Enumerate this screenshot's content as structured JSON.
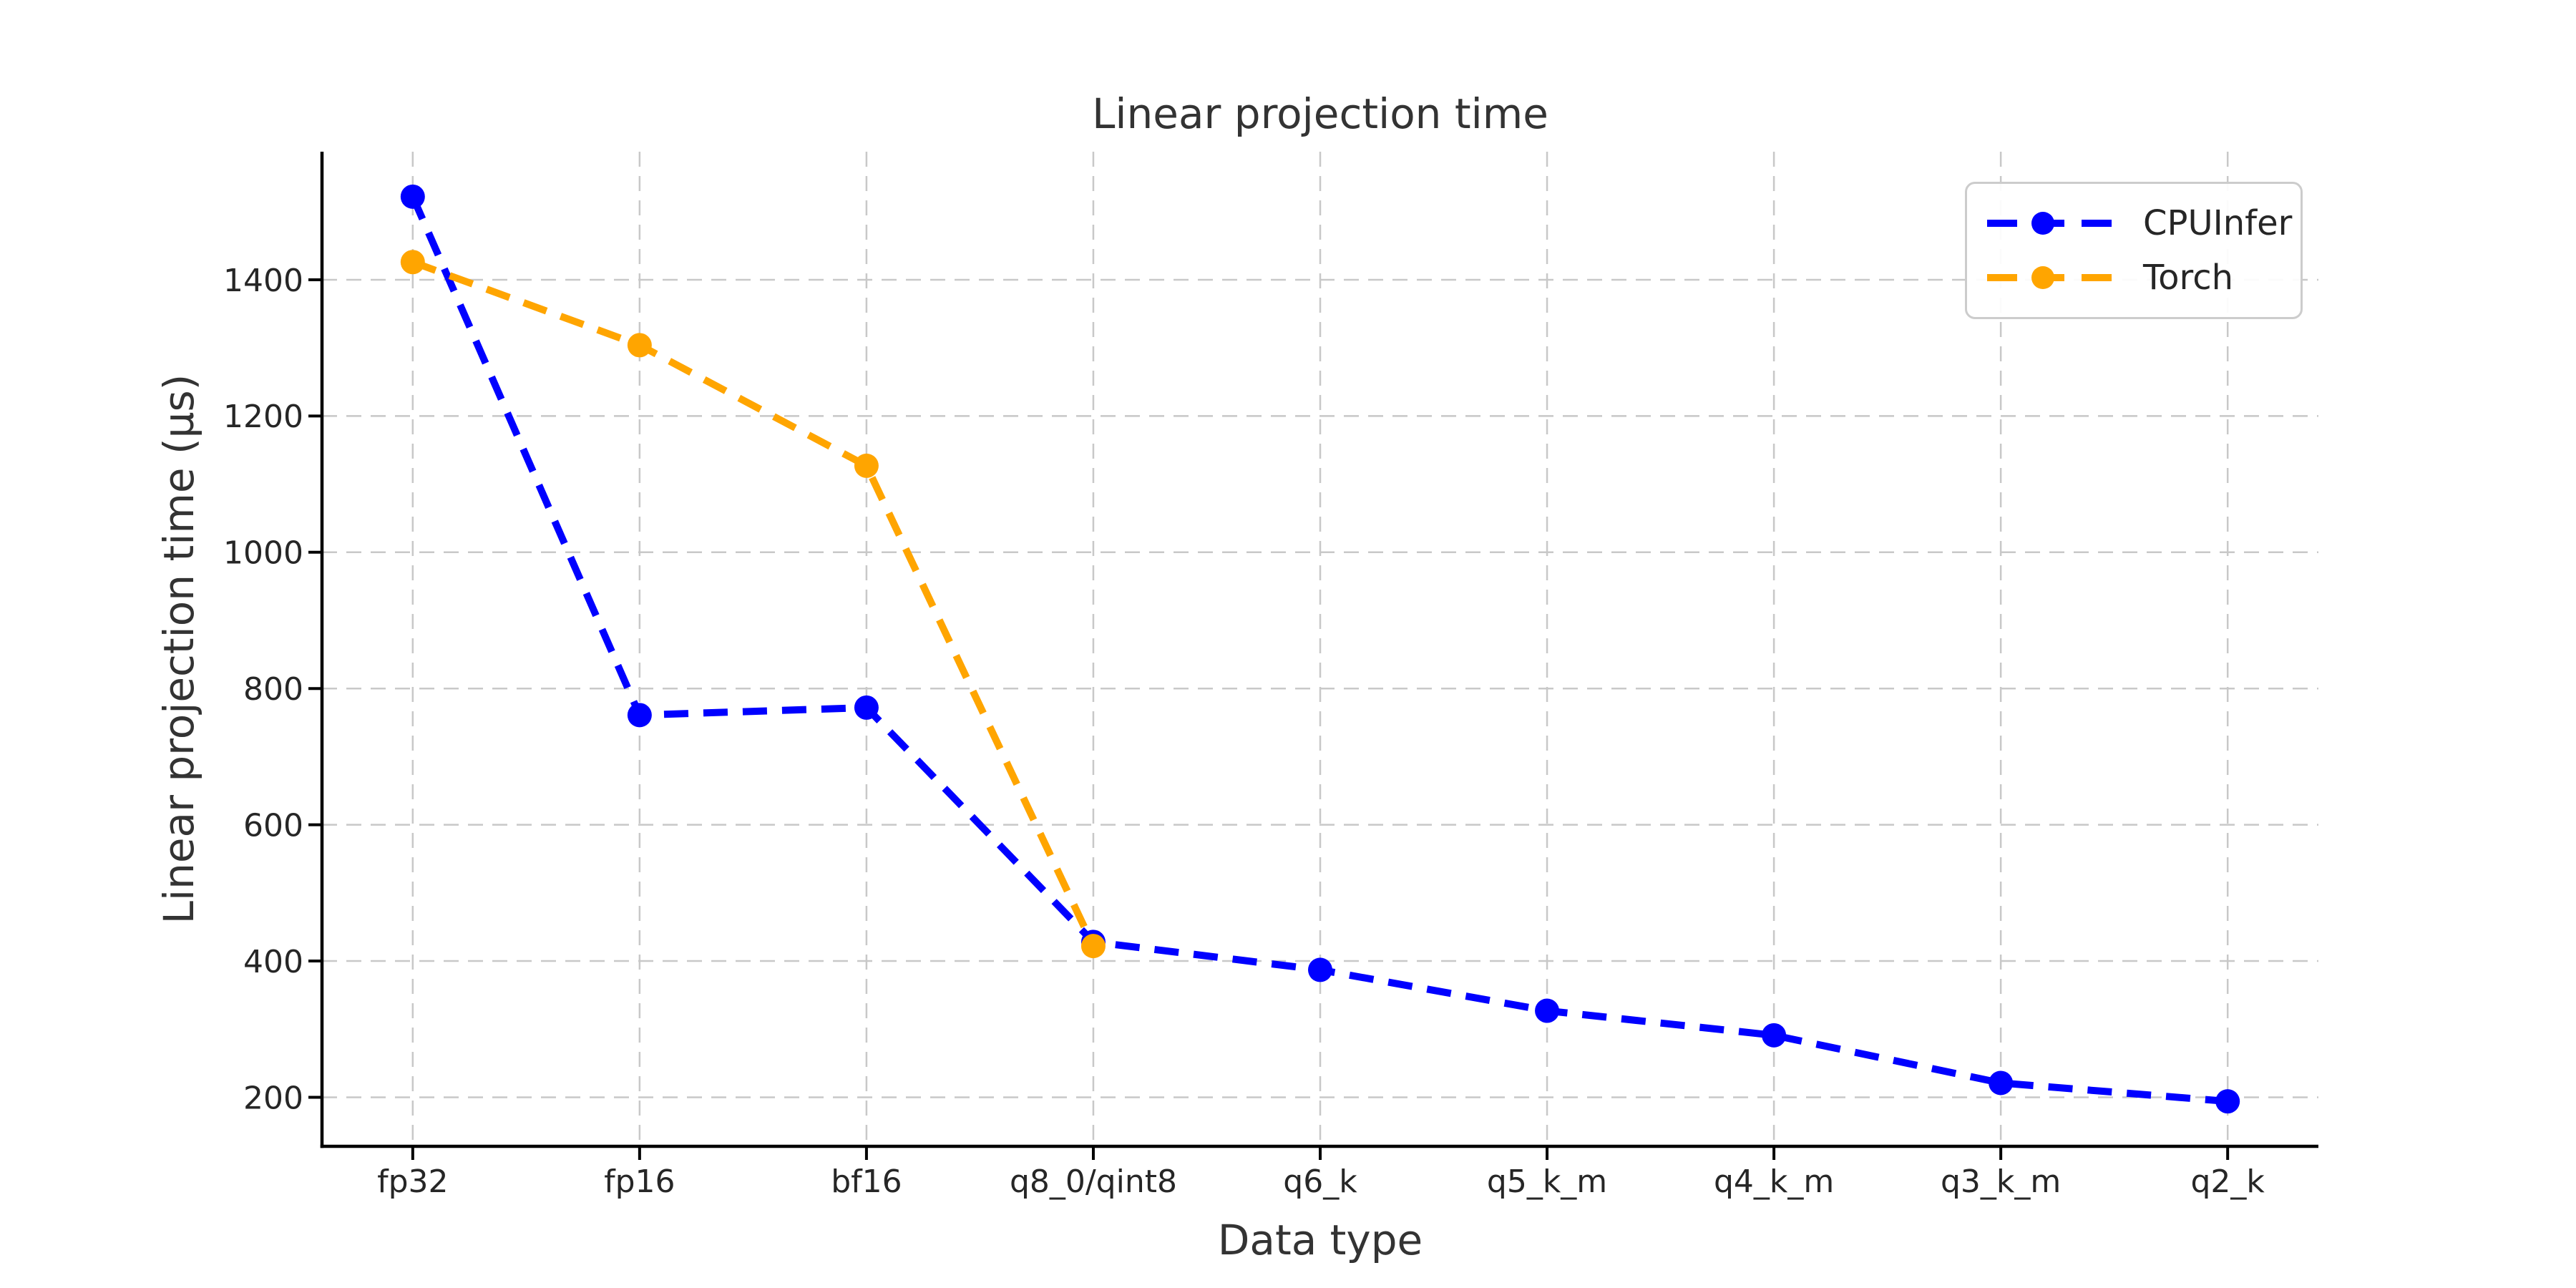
{
  "figure": {
    "background": "#ffffff"
  },
  "chart_data": {
    "type": "line",
    "title": "Linear projection time",
    "xlabel": "Data type",
    "ylabel": "Linear projection time (µs)",
    "categories": [
      "fp32",
      "fp16",
      "bf16",
      "q8_0/qint8",
      "q6_k",
      "q5_k_m",
      "q4_k_m",
      "q3_k_m",
      "q2_k"
    ],
    "series": [
      {
        "name": "CPUInfer",
        "color": "#0000ff",
        "values": [
          1522,
          761,
          772,
          428,
          387,
          327,
          291,
          221,
          194
        ]
      },
      {
        "name": "Torch",
        "color": "#ffa500",
        "values": [
          1426,
          1304,
          1127,
          422,
          null,
          null,
          null,
          null,
          null
        ]
      }
    ],
    "y_ticks": [
      200,
      400,
      600,
      800,
      1000,
      1200,
      1400
    ],
    "ylim": [
      128,
      1588
    ],
    "grid": true,
    "grid_style": "dashed",
    "line_style": "dashed",
    "marker": "o",
    "legend_position": "upper right",
    "colors": {
      "grid": "#c8c8c8",
      "axis": "#000000",
      "tick_label": "#262626",
      "title": "#333333",
      "legend_border": "#cccccc"
    }
  }
}
